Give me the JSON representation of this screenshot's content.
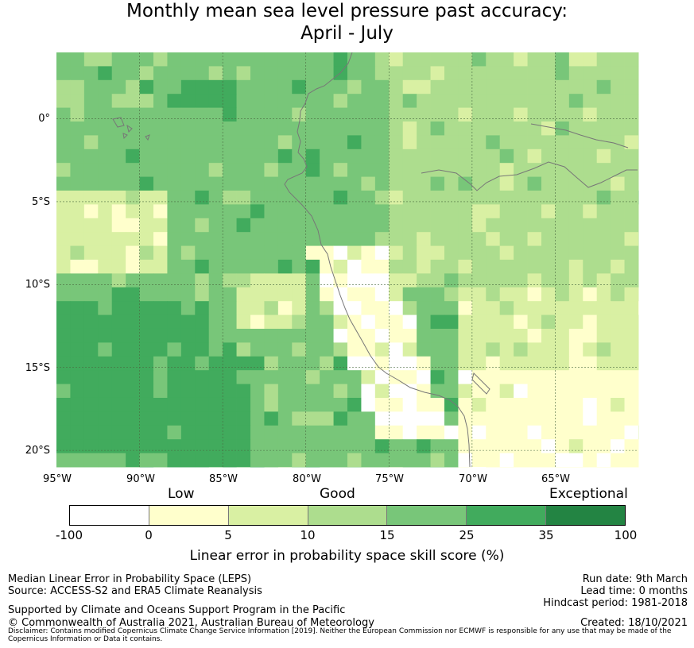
{
  "title": {
    "line1": "Monthly mean sea level pressure past accuracy:",
    "line2": "April - July"
  },
  "map": {
    "lon_range": [
      -95,
      -60
    ],
    "lat_range": [
      -21,
      4
    ],
    "lat_labels": [
      "0°",
      "5°S",
      "10°S",
      "15°S",
      "20°S"
    ],
    "lon_labels": [
      "95°W",
      "90°W",
      "85°W",
      "80°W",
      "75°W",
      "70°W",
      "65°W"
    ]
  },
  "colorbar": {
    "categories": [
      "Low",
      "Good",
      "Exceptional"
    ],
    "ticks": [
      "-100",
      "0",
      "5",
      "10",
      "15",
      "25",
      "35",
      "100"
    ],
    "colors": [
      "#ffffff",
      "#ffffcc",
      "#d9f0a3",
      "#addd8e",
      "#78c679",
      "#41ab5d",
      "#238443"
    ],
    "title": "Linear error in probability space skill score (%)"
  },
  "footer": {
    "left1": "Median Linear Error in Probability Space (LEPS)",
    "left2": "Source: ACCESS-S2 and ERA5 Climate Reanalysis",
    "support": "Supported by Climate and Oceans Support Program in the Pacific",
    "copyright": "© Commonwealth of Australia 2021, Australian Bureau of Meteorology",
    "run_date": "Run date: 9th March",
    "lead_time": "Lead time: 0 months",
    "hindcast": "Hindcast period: 1981-2018",
    "created": "Created: 18/10/2021",
    "disclaimer": "Disclaimer: Contains modified Copernicus Climate Change Service Information [2019]. Neither the European Commission nor ECMWF is responsible for any use that may be made of the Copernicus Information or Data it contains."
  }
}
